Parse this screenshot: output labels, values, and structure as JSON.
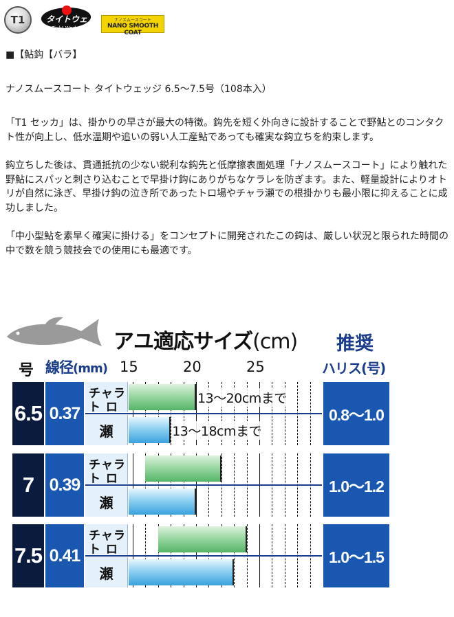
{
  "logos": {
    "t1": "T1",
    "tight_wedge": "タイトウェッジ",
    "tight_wedge_sub": "Tight Wedge",
    "nano_small": "ナノスムースコート",
    "nano_main": "NANO SMOOTH COAT"
  },
  "heading": "■【鮎鈎【バラ】",
  "product_line": "ナノスムースコート タイトウェッジ 6.5〜7.5号（108本入）",
  "description": [
    "「T1 セッカ」は、掛かりの早さが最大の特徴。鈎先を短く外向きに設計することで野鮎とのコンタクト性が向上し、低水温期や追いの弱い人工産鮎であっても確実な鈎立ちを約束します。",
    "鈎立ちした後は、貫通抵抗の少ない鋭利な鈎先と低摩擦表面処理「ナノスムースコート」により触れた野鮎にスパッと刺さり込むことで早掛け鈎にありがちなケラレを防ぎます。また、軽量設計によりオトリが自然に泳ぎ、早掛け鈎の泣き所であったトロ場やチャラ瀬での根掛かりも最小限に抑えることに成功しました。",
    "「中小型鮎を素早く確実に掛ける」をコンセプトに開発されたこの鈎は、厳しい状況と限られた時間の中で数を競う競技会での使用にも最適です。"
  ],
  "chart": {
    "title": "アユ適応サイズ",
    "title_unit": "(cm)",
    "col_size": "号",
    "col_wire": "線径",
    "col_wire_unit": "(mm)",
    "col_rec1": "推奨",
    "col_rec2": "ハリス(号)",
    "ticks": [
      "15",
      "20",
      "25"
    ]
  },
  "chart_data": {
    "type": "bar",
    "title": "アユ適応サイズ(cm)",
    "x_ticks": [
      15,
      20,
      25
    ],
    "xlim": [
      12,
      30
    ],
    "rows": [
      {
        "size": "6.5",
        "wire": "0.37",
        "harris": "0.8〜1.0",
        "segments": [
          {
            "label1": "チャラ",
            "label2": "ト ロ",
            "range": [
              13,
              20
            ],
            "color": "green",
            "note": "13〜20cmまで"
          },
          {
            "label1": "瀬",
            "range": [
              13,
              18
            ],
            "color": "blue",
            "note": "13〜18cmまで"
          }
        ]
      },
      {
        "size": "7",
        "wire": "0.39",
        "harris": "1.0〜1.2",
        "segments": [
          {
            "label1": "チャラ",
            "label2": "ト ロ",
            "range": [
              16,
              22
            ],
            "color": "green"
          },
          {
            "label1": "瀬",
            "range": [
              13,
              20
            ],
            "color": "blue"
          }
        ]
      },
      {
        "size": "7.5",
        "wire": "0.41",
        "harris": "1.0〜1.5",
        "segments": [
          {
            "label1": "チャラ",
            "label2": "ト ロ",
            "range": [
              17,
              24
            ],
            "color": "green"
          },
          {
            "label1": "瀬",
            "range": [
              14,
              23
            ],
            "color": "blue"
          }
        ]
      }
    ]
  }
}
